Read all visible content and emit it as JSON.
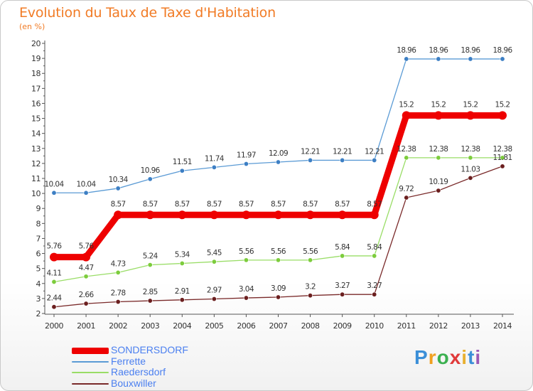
{
  "header": {
    "title": "Evolution du Taux de Taxe d'Habitation",
    "unit": "(en %)"
  },
  "logo": {
    "text": "Proxiti",
    "letter_colors": [
      "#3b8fd8",
      "#f0a020",
      "#3bb050",
      "#e03a3a",
      "#e8b030",
      "#3b8fd8",
      "#9b59b6"
    ]
  },
  "colors": {
    "title": "#f17b25",
    "axis": "#555555",
    "tick_label": "#333333",
    "data_label": "#333333"
  },
  "chart_data": {
    "type": "line",
    "title": "Evolution du Taux de Taxe d'Habitation",
    "ylabel": "(en %)",
    "x": [
      2000,
      2001,
      2002,
      2003,
      2004,
      2005,
      2006,
      2007,
      2008,
      2009,
      2010,
      2011,
      2012,
      2013,
      2014
    ],
    "ylim": [
      2,
      20
    ],
    "yticks": [
      2,
      3,
      4,
      5,
      6,
      7,
      8,
      9,
      10,
      11,
      12,
      13,
      14,
      15,
      16,
      17,
      18,
      19,
      20
    ],
    "grid": false,
    "legend_position": "bottom-left",
    "series": [
      {
        "name": "SONDERSDORF",
        "color": "#ee0000",
        "legend_text_color": "#4a7ff0",
        "emphasis": true,
        "values": [
          5.76,
          5.76,
          8.57,
          8.57,
          8.57,
          8.57,
          8.57,
          8.57,
          8.57,
          8.57,
          8.57,
          15.2,
          15.2,
          15.2,
          15.2
        ],
        "labels": [
          "5.76",
          "5.76",
          "8.57",
          "8.57",
          "8.57",
          "8.57",
          "8.57",
          "8.57",
          "8.57",
          "8.57",
          "8.57",
          "15.2",
          "15.2",
          "15.2",
          "15.2"
        ]
      },
      {
        "name": "Ferrette",
        "color": "#5b9bd5",
        "marker_fill": "#3d7fc4",
        "legend_text_color": "#4a7ff0",
        "values": [
          10.04,
          10.04,
          10.34,
          10.96,
          11.51,
          11.74,
          11.97,
          12.09,
          12.21,
          12.21,
          12.21,
          18.96,
          18.96,
          18.96,
          18.96
        ],
        "labels": [
          "10.04",
          "10.04",
          "10.34",
          "10.96",
          "11.51",
          "11.74",
          "11.97",
          "12.09",
          "12.21",
          "12.21",
          "12.21",
          "18.96",
          "18.96",
          "18.96",
          "18.96"
        ]
      },
      {
        "name": "Raedersdorf",
        "color": "#99dd66",
        "marker_fill": "#7ccc3c",
        "legend_text_color": "#4a7ff0",
        "values": [
          4.11,
          4.47,
          4.73,
          5.24,
          5.34,
          5.45,
          5.56,
          5.56,
          5.56,
          5.84,
          5.84,
          12.38,
          12.38,
          12.38,
          12.38
        ],
        "labels": [
          "4.11",
          "4.47",
          "4.73",
          "5.24",
          "5.34",
          "5.45",
          "5.56",
          "5.56",
          "5.56",
          "5.84",
          "5.84",
          "12.38",
          "12.38",
          "12.38",
          "12.38"
        ]
      },
      {
        "name": "Bouxwiller",
        "color": "#7a2a2a",
        "marker_fill": "#6b1f1f",
        "legend_text_color": "#4a7ff0",
        "values": [
          2.44,
          2.66,
          2.78,
          2.85,
          2.91,
          2.97,
          3.04,
          3.09,
          3.2,
          3.27,
          3.27,
          9.72,
          10.19,
          11.03,
          11.81
        ],
        "labels": [
          "2.44",
          "2.66",
          "2.78",
          "2.85",
          "2.91",
          "2.97",
          "3.04",
          "3.09",
          "3.2",
          "3.27",
          "3.27",
          "9.72",
          "10.19",
          "11.03",
          "11.81"
        ]
      }
    ]
  }
}
